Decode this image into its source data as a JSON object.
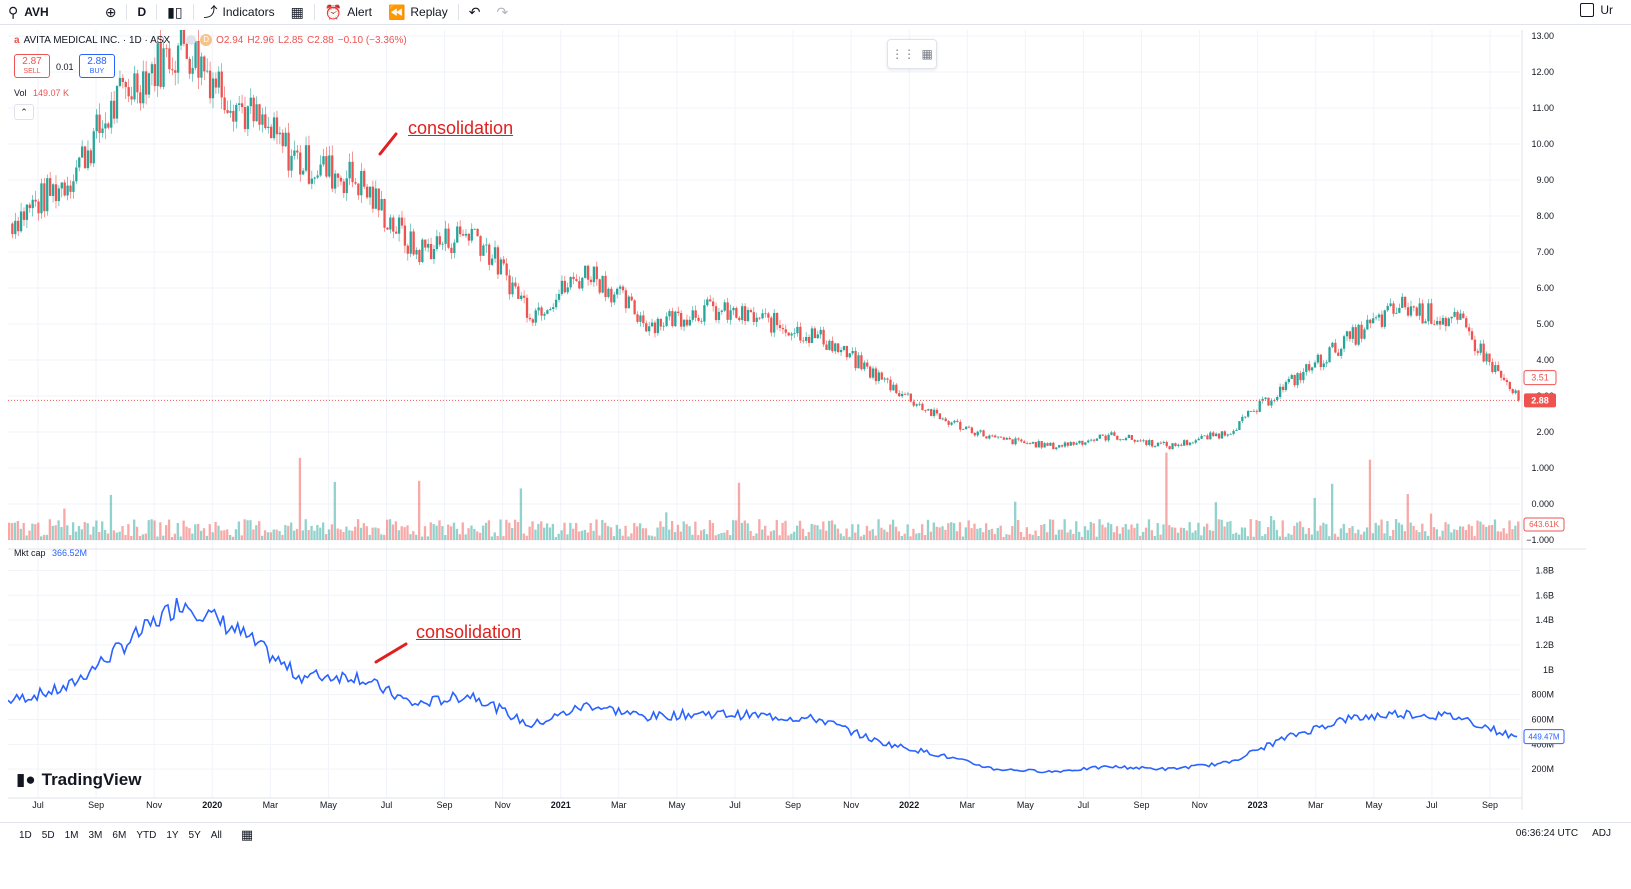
{
  "toolbar": {
    "symbol": "AVH",
    "interval": "D",
    "indicators_label": "Indicators",
    "alert_label": "Alert",
    "replay_label": "Replay",
    "right_partial": "Ur"
  },
  "legend": {
    "symbol_name": "AVITA MEDICAL INC. · 1D · ASX",
    "open": "O2.94",
    "high": "H2.96",
    "low": "L2.85",
    "close": "C2.88",
    "change": "−0.10 (−3.36%)"
  },
  "trade": {
    "sell_price": "2.87",
    "sell_label": "SELL",
    "buy_price": "2.88",
    "buy_label": "BUY",
    "spread": "0.01"
  },
  "volume": {
    "label": "Vol",
    "value": "149.07 K",
    "scale_label": "643.61K"
  },
  "marketcap": {
    "label": "Mkt cap",
    "value": "366.52M",
    "current_label": "449.47M"
  },
  "price_axis": {
    "ticks": [
      "13.00",
      "12.00",
      "11.00",
      "10.00",
      "9.00",
      "8.00",
      "7.00",
      "6.00",
      "5.00",
      "4.00",
      "3.00",
      "2.00",
      "1.000",
      "0.000",
      "−1.000"
    ],
    "current_price": "2.88",
    "prev_price": "3.51"
  },
  "mcap_axis": {
    "ticks": [
      "1.8B",
      "1.6B",
      "1.4B",
      "1.2B",
      "1B",
      "800M",
      "600M",
      "400M",
      "200M"
    ]
  },
  "time_axis": {
    "ticks": [
      "Jul",
      "Sep",
      "Nov",
      "2020",
      "Mar",
      "May",
      "Jul",
      "Sep",
      "Nov",
      "2021",
      "Mar",
      "May",
      "Jul",
      "Sep",
      "Nov",
      "2022",
      "Mar",
      "May",
      "Jul",
      "Sep",
      "Nov",
      "2023",
      "Mar",
      "May",
      "Jul",
      "Sep"
    ]
  },
  "annotations": {
    "top": "consolidation",
    "bottom": "consolidation"
  },
  "brand": "TradingView",
  "ranges": [
    "1D",
    "5D",
    "1M",
    "3M",
    "6M",
    "YTD",
    "1Y",
    "5Y",
    "All"
  ],
  "footer": {
    "time": "06:36:24 UTC",
    "adj": "ADJ"
  },
  "chart_data": {
    "type": "line",
    "symbol": "AVH",
    "x": [
      "2019-07",
      "2019-09",
      "2019-11",
      "2020-01",
      "2020-03",
      "2020-05",
      "2020-07",
      "2020-09",
      "2020-11",
      "2021-01",
      "2021-03",
      "2021-05",
      "2021-07",
      "2021-09",
      "2021-11",
      "2022-01",
      "2022-03",
      "2022-05",
      "2022-07",
      "2022-09",
      "2022-11",
      "2023-01",
      "2023-03",
      "2023-05",
      "2023-07",
      "2023-09",
      "2023-10"
    ],
    "series": [
      {
        "values": [
          7.8,
          9.0,
          11.5,
          12.8,
          11.0,
          9.5,
          9.0,
          7.0,
          7.6,
          5.3,
          6.5,
          5.0,
          5.4,
          5.1,
          4.6,
          3.5,
          2.4,
          1.8,
          1.6,
          1.9,
          1.6,
          2.0,
          3.3,
          4.5,
          5.5,
          5.0,
          2.88
        ]
      },
      {
        "values": [
          0.75,
          0.85,
          1.2,
          1.55,
          1.3,
          0.95,
          0.95,
          0.72,
          0.8,
          0.55,
          0.72,
          0.62,
          0.65,
          0.63,
          0.6,
          0.42,
          0.32,
          0.2,
          0.18,
          0.22,
          0.2,
          0.25,
          0.45,
          0.6,
          0.65,
          0.62,
          0.45
        ]
      }
    ],
    "ylim_price": [
      -1,
      13
    ],
    "ylim_mcap": [
      0,
      1.9
    ]
  }
}
